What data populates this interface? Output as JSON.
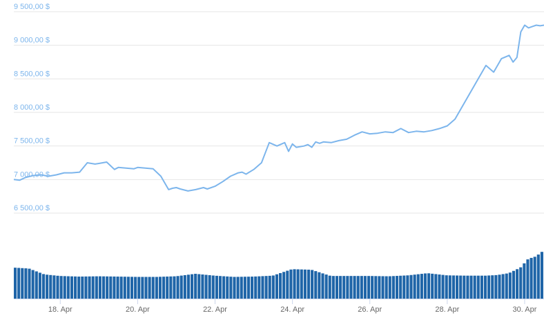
{
  "chart_data": {
    "type": "line",
    "title": "",
    "xlabel": "",
    "ylabel": "",
    "ylim": [
      6500,
      9500
    ],
    "y_ticks": [
      "6 500,00 $",
      "7 000,00 $",
      "7 500,00 $",
      "8 000,00 $",
      "8 500,00 $",
      "9 000,00 $",
      "9 500,00 $"
    ],
    "x_ticks": [
      "18. Apr",
      "20. Apr",
      "22. Apr",
      "24. Apr",
      "26. Apr",
      "28. Apr",
      "30. Apr"
    ],
    "xlim_days": [
      16.8,
      30.5
    ],
    "grid": true,
    "legend": "none",
    "line_color": "#7cb5ec",
    "volume_color": "#1f65a8",
    "price": {
      "x": [
        16.8,
        16.95,
        17.1,
        17.3,
        17.5,
        17.7,
        17.9,
        18.1,
        18.3,
        18.5,
        18.7,
        18.9,
        19.0,
        19.2,
        19.4,
        19.5,
        19.7,
        19.9,
        20.0,
        20.2,
        20.4,
        20.6,
        20.8,
        20.9,
        21.0,
        21.1,
        21.3,
        21.5,
        21.7,
        21.8,
        22.0,
        22.2,
        22.4,
        22.6,
        22.7,
        22.8,
        23.0,
        23.2,
        23.4,
        23.6,
        23.8,
        23.9,
        24.0,
        24.1,
        24.3,
        24.4,
        24.5,
        24.6,
        24.7,
        24.8,
        25.0,
        25.2,
        25.4,
        25.6,
        25.8,
        26.0,
        26.2,
        26.4,
        26.6,
        26.8,
        27.0,
        27.2,
        27.4,
        27.6,
        27.8,
        28.0,
        28.2,
        28.4,
        28.6,
        28.8,
        29.0,
        29.2,
        29.4,
        29.6,
        29.7,
        29.8,
        29.9,
        30.0,
        30.1,
        30.2,
        30.3,
        30.4,
        30.5
      ],
      "y": [
        7000,
        6990,
        7030,
        7060,
        7070,
        7050,
        7070,
        7100,
        7100,
        7110,
        7250,
        7230,
        7240,
        7260,
        7150,
        7180,
        7170,
        7160,
        7180,
        7170,
        7160,
        7050,
        6850,
        6870,
        6880,
        6860,
        6830,
        6850,
        6880,
        6860,
        6900,
        6970,
        7050,
        7100,
        7110,
        7080,
        7150,
        7250,
        7550,
        7500,
        7550,
        7420,
        7530,
        7480,
        7500,
        7520,
        7480,
        7560,
        7540,
        7560,
        7550,
        7580,
        7600,
        7660,
        7710,
        7680,
        7690,
        7710,
        7700,
        7760,
        7700,
        7720,
        7710,
        7730,
        7760,
        7800,
        7900,
        8100,
        8300,
        8500,
        8700,
        8600,
        8800,
        8850,
        8750,
        8820,
        9200,
        9300,
        9260,
        9280,
        9300,
        9290,
        9300
      ]
    },
    "volume": {
      "x": [
        16.8,
        17.2,
        17.6,
        18.0,
        18.5,
        19.0,
        19.5,
        20.0,
        20.5,
        21.0,
        21.5,
        22.0,
        22.5,
        23.0,
        23.5,
        24.0,
        24.5,
        25.0,
        25.5,
        26.0,
        26.5,
        27.0,
        27.5,
        28.0,
        28.5,
        29.0,
        29.3,
        29.6,
        29.9,
        30.1,
        30.3,
        30.5
      ],
      "y": [
        1.0,
        0.97,
        0.78,
        0.73,
        0.71,
        0.72,
        0.71,
        0.7,
        0.7,
        0.72,
        0.8,
        0.74,
        0.7,
        0.71,
        0.74,
        0.95,
        0.93,
        0.73,
        0.73,
        0.73,
        0.72,
        0.75,
        0.82,
        0.75,
        0.74,
        0.74,
        0.76,
        0.82,
        1.0,
        1.28,
        1.36,
        1.55
      ]
    }
  }
}
